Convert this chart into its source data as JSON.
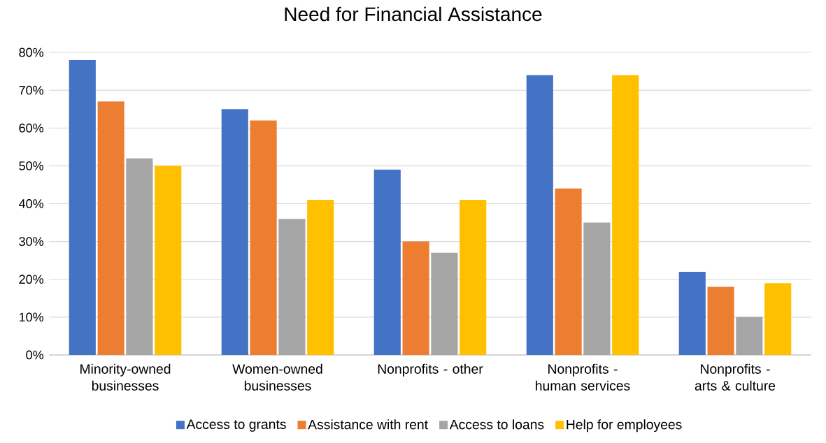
{
  "chart_data": {
    "type": "bar",
    "title": "Need for Financial Assistance",
    "categories": [
      "Minority-owned businesses",
      "Women-owned businesses",
      "Nonprofits - other",
      "Nonprofits - human services",
      "Nonprofits - arts & culture"
    ],
    "series": [
      {
        "name": "Access to grants",
        "color": "#4472c4",
        "values": [
          78,
          65,
          49,
          74,
          22
        ]
      },
      {
        "name": "Assistance with rent",
        "color": "#ed7d31",
        "values": [
          67,
          62,
          30,
          44,
          18
        ]
      },
      {
        "name": "Access to loans",
        "color": "#a5a5a5",
        "values": [
          52,
          36,
          27,
          35,
          10
        ]
      },
      {
        "name": "Help for employees",
        "color": "#ffc000",
        "values": [
          50,
          41,
          41,
          74,
          19
        ]
      }
    ],
    "ylim": [
      0,
      80
    ],
    "yticks": [
      {
        "value": 0,
        "label": "0%"
      },
      {
        "value": 10,
        "label": "10%"
      },
      {
        "value": 20,
        "label": "20%"
      },
      {
        "value": 30,
        "label": "30%"
      },
      {
        "value": 40,
        "label": "40%"
      },
      {
        "value": 50,
        "label": "50%"
      },
      {
        "value": 60,
        "label": "60%"
      },
      {
        "value": 70,
        "label": "70%"
      },
      {
        "value": 80,
        "label": "80%"
      }
    ],
    "grid": "y",
    "legend": "bottom"
  }
}
